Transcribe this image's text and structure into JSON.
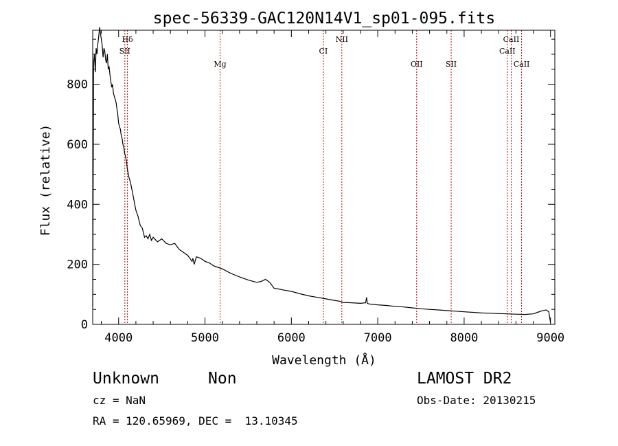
{
  "chart_data": {
    "type": "line",
    "title": "spec-56339-GAC120N14V1_sp01-095.fits",
    "xlabel": "Wavelength (Å)",
    "ylabel": "Flux (relative)",
    "xlim": [
      3700,
      9050
    ],
    "ylim": [
      0,
      980
    ],
    "xticks": [
      4000,
      5000,
      6000,
      7000,
      8000,
      9000
    ],
    "yticks": [
      0,
      200,
      400,
      600,
      800
    ],
    "grid": false,
    "line_color": "#000000",
    "marker_color": "#cc0000",
    "series": [
      {
        "x": [
          3700,
          3710,
          3720,
          3730,
          3740,
          3750,
          3760,
          3770,
          3780,
          3790,
          3800,
          3810,
          3820,
          3830,
          3840,
          3850,
          3860,
          3870,
          3880,
          3890,
          3900,
          3910,
          3920,
          3930,
          3940,
          3950,
          3960,
          3970,
          3980,
          3990,
          4000,
          4010,
          4020,
          4030,
          4040,
          4050,
          4060,
          4070,
          4080,
          4090,
          4100,
          4120,
          4140,
          4160,
          4180,
          4200,
          4225,
          4250,
          4275,
          4300,
          4320,
          4340,
          4360,
          4380,
          4400,
          4450,
          4500,
          4550,
          4600,
          4650,
          4700,
          4750,
          4800,
          4850,
          4860,
          4875,
          4900,
          4950,
          5000,
          5050,
          5100,
          5150,
          5200,
          5300,
          5400,
          5500,
          5600,
          5650,
          5700,
          5750,
          5800,
          5850,
          5900,
          6000,
          6100,
          6200,
          6300,
          6400,
          6500,
          6563,
          6600,
          6700,
          6800,
          6860,
          6870,
          6880,
          6900,
          7000,
          7100,
          7200,
          7300,
          7400,
          7500,
          7600,
          7700,
          7800,
          7900,
          8000,
          8100,
          8200,
          8300,
          8400,
          8500,
          8600,
          8700,
          8800,
          8850,
          8900,
          8950,
          8980,
          9000
        ],
        "y": [
          60,
          870,
          900,
          840,
          920,
          900,
          935,
          960,
          990,
          970,
          950,
          930,
          890,
          920,
          910,
          880,
          870,
          900,
          850,
          860,
          830,
          810,
          790,
          800,
          770,
          760,
          750,
          740,
          720,
          700,
          670,
          660,
          650,
          630,
          620,
          600,
          590,
          570,
          560,
          545,
          520,
          490,
          470,
          440,
          410,
          380,
          360,
          330,
          320,
          290,
          295,
          285,
          300,
          280,
          290,
          275,
          285,
          270,
          265,
          270,
          250,
          240,
          230,
          210,
          220,
          200,
          225,
          220,
          210,
          205,
          195,
          190,
          185,
          170,
          158,
          148,
          140,
          143,
          150,
          140,
          120,
          118,
          115,
          110,
          102,
          95,
          90,
          85,
          80,
          77,
          73,
          72,
          70,
          72,
          90,
          70,
          68,
          65,
          63,
          60,
          58,
          55,
          52,
          50,
          48,
          46,
          44,
          42,
          40,
          38,
          37,
          36,
          35,
          34,
          33,
          35,
          40,
          45,
          48,
          42,
          5
        ]
      }
    ],
    "lines": [
      {
        "label": "Hδ",
        "x": 4102,
        "row": 1
      },
      {
        "label": "SII",
        "x": 4072,
        "row": 2
      },
      {
        "label": "Mg",
        "x": 5175,
        "row": 3
      },
      {
        "label": "CI",
        "x": 6370,
        "row": 2
      },
      {
        "label": "NII",
        "x": 6584,
        "row": 1
      },
      {
        "label": "OII",
        "x": 7450,
        "row": 3
      },
      {
        "label": "SII",
        "x": 7850,
        "row": 3
      },
      {
        "label": "CaII",
        "x": 8545,
        "row": 1
      },
      {
        "label": "CaII",
        "x": 8500,
        "row": 2
      },
      {
        "label": "CaII",
        "x": 8665,
        "row": 3
      }
    ]
  },
  "info": {
    "object_class": "Unknown",
    "subclass": "Non",
    "survey": "LAMOST DR2",
    "cz": "cz = NaN",
    "obs_date": "Obs-Date: 20130215",
    "coords": "RA = 120.65969, DEC =  13.10345"
  }
}
